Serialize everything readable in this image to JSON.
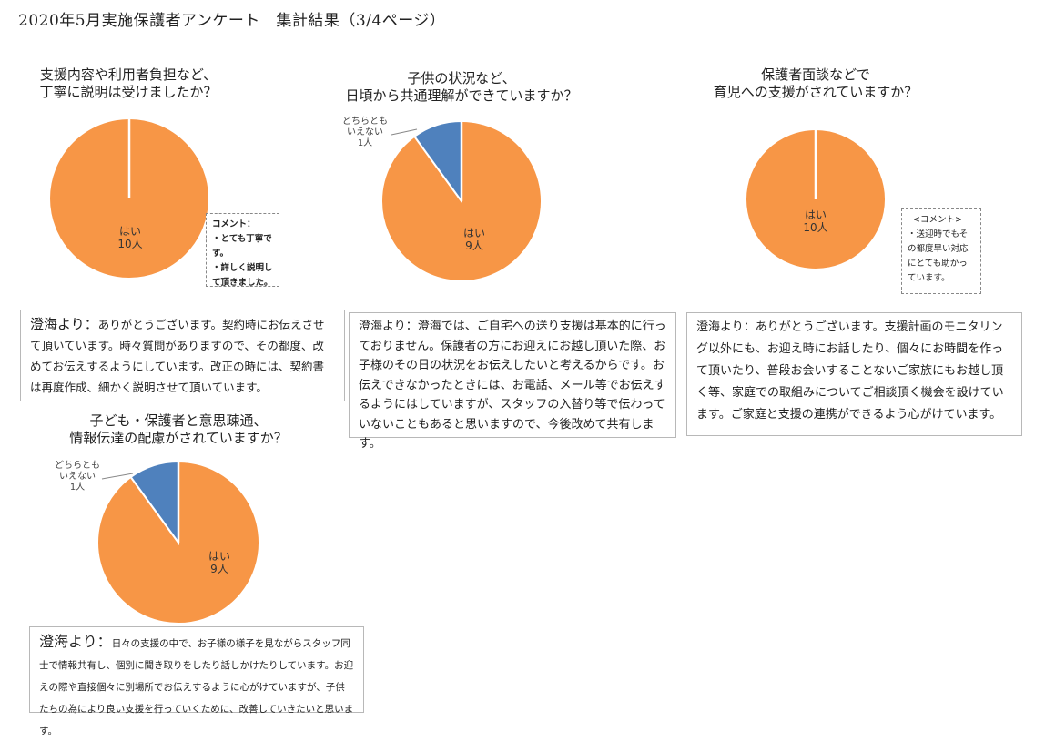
{
  "page_title": "2020年5月実施保護者アンケート　集計結果（3/4ページ）",
  "colors": {
    "yes": "#F79646",
    "neutral": "#4F81BD"
  },
  "chart_data": [
    {
      "type": "pie",
      "title": [
        "支援内容や利用者負担など、",
        "丁寧に説明は受けましたか？"
      ],
      "categories": [
        "はい"
      ],
      "values": [
        10
      ],
      "labels": [
        [
          "はい",
          "10人"
        ]
      ]
    },
    {
      "type": "pie",
      "title": [
        "子供の状況など、",
        "日頃から共通理解ができていますか？"
      ],
      "categories": [
        "はい",
        "どちらともいえない"
      ],
      "values": [
        9,
        1
      ],
      "labels": [
        [
          "はい",
          "9人"
        ],
        [
          "どちらとも",
          "いえない",
          "1人"
        ]
      ]
    },
    {
      "type": "pie",
      "title": [
        "保護者面談などで",
        "育児への支援がされていますか？"
      ],
      "categories": [
        "はい"
      ],
      "values": [
        10
      ],
      "labels": [
        [
          "はい",
          "10人"
        ]
      ]
    },
    {
      "type": "pie",
      "title": [
        "子ども・保護者と意思疎通、",
        "情報伝達の配慮がされていますか？"
      ],
      "categories": [
        "はい",
        "どちらともいえない"
      ],
      "values": [
        9,
        1
      ],
      "labels": [
        [
          "はい",
          "9人"
        ],
        [
          "どちらとも",
          "いえない",
          "1人"
        ]
      ]
    }
  ],
  "comments": [
    [
      "コメント：",
      "・とても丁寧で",
      "す。",
      "・詳しく説明し",
      "て頂きました。"
    ],
    [
      "<コメント>",
      "・送迎時でもそ",
      "の都度早い対応",
      "にとても助かっ",
      "ています。"
    ]
  ],
  "responses": [
    {
      "from": "澄海より：",
      "text": "ありがとうございます。契約時にお伝えさせて頂いています。時々質問がありますので、その都度、改めてお伝えするようにしています。改正の時には、契約書は再度作成、細かく説明させて頂いています。"
    },
    {
      "from": "澄海より：",
      "text": "澄海では、ご自宅への送り支援は基本的に行っておりません。保護者の方にお迎えにお越し頂いた際、お子様のその日の状況をお伝えしたいと考えるからです。お伝えできなかったときには、お電話、メール等でお伝えするようにはしていますが、スタッフの入替り等で伝わっていないこともあると思いますので、今後改めて共有します。"
    },
    {
      "from": "澄海より：",
      "text": "ありがとうございます。支援計画のモニタリング以外にも、お迎え時にお話したり、個々にお時間を作って頂いたり、普段お会いすることないご家族にもお越し頂く等、家庭での取組みについてご相談頂く機会を設けています。ご家庭と支援の連携ができるよう心がけています。"
    },
    {
      "from": "澄海より：",
      "text": "日々の支援の中で、お子様の様子を見ながらスタッフ同士で情報共有し、個別に聞き取りをしたり話しかけたりしています。お迎えの際や直接個々に別場所でお伝えするように心がけていますが、子供たちの為により良い支援を行っていくために、改善していきたいと思います。"
    }
  ]
}
